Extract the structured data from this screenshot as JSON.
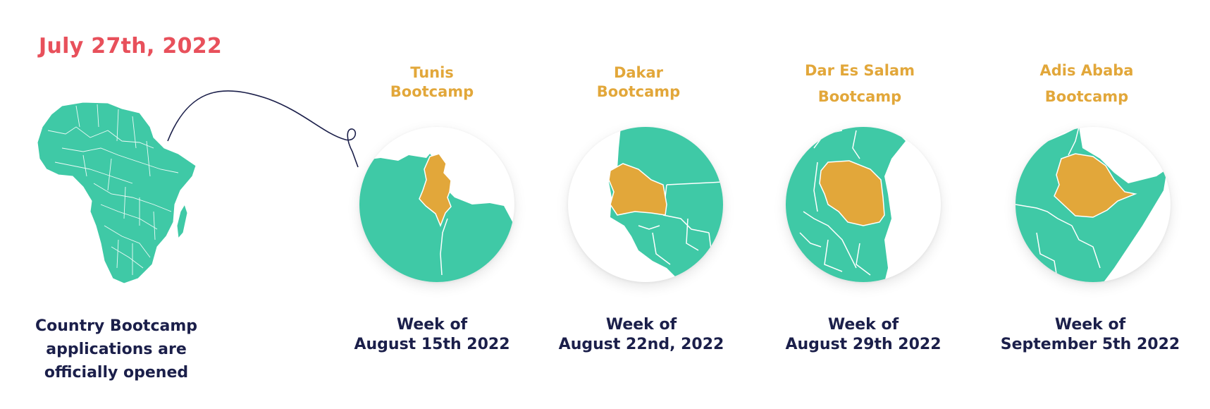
{
  "date": "July 27th, 2022",
  "opened": {
    "line1": "Country Bootcamp",
    "line2": "applications are",
    "line3": "officially opened"
  },
  "bootcamps": [
    {
      "city": "Tunis",
      "label": "Bootcamp",
      "week": "Week of",
      "date": "August 15th 2022"
    },
    {
      "city": "Dakar",
      "label": "Bootcamp",
      "week": "Week of",
      "date": "August 22nd, 2022"
    },
    {
      "city": "Dar Es Salam",
      "label": "Bootcamp",
      "week": "Week of",
      "date": "August 29th 2022"
    },
    {
      "city": "Adis Ababa",
      "label": "Bootcamp",
      "week": "Week of",
      "date": "September 5th 2022"
    }
  ],
  "colors": {
    "date": "#e8505b",
    "land": "#3fc9a6",
    "highlight": "#e2a73a",
    "text": "#1b1f4a",
    "line": "#1b1f4a"
  },
  "icons": {
    "africa": "africa-map-icon",
    "tunisia": "tunisia-map-icon",
    "senegal": "senegal-map-icon",
    "tanzania": "tanzania-map-icon",
    "ethiopia": "ethiopia-map-icon"
  }
}
